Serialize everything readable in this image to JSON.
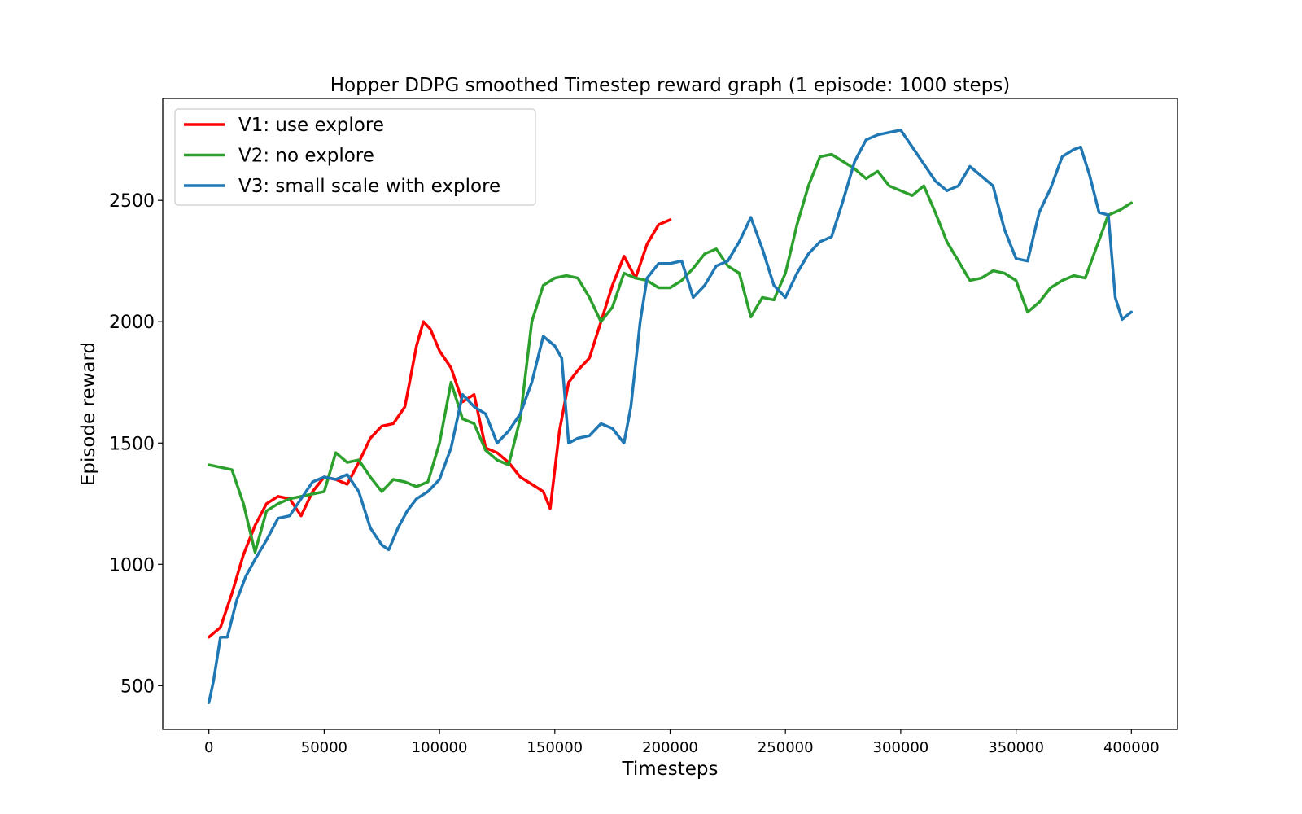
{
  "chart_data": {
    "type": "line",
    "title": "Hopper DDPG smoothed Timestep reward graph (1 episode: 1000 steps)",
    "xlabel": "Timesteps",
    "ylabel": "Episode reward",
    "xlim": [
      -20000,
      420000
    ],
    "ylim": [
      320,
      2920
    ],
    "xticks": [
      0,
      50000,
      100000,
      150000,
      200000,
      250000,
      300000,
      350000,
      400000
    ],
    "xtick_labels": [
      "0",
      "50000",
      "100000",
      "150000",
      "200000",
      "250000",
      "300000",
      "350000",
      "400000"
    ],
    "yticks": [
      500,
      1000,
      1500,
      2000,
      2500
    ],
    "ytick_labels": [
      "500",
      "1000",
      "1500",
      "2000",
      "2500"
    ],
    "grid": false,
    "legend_position": "top-left",
    "series": [
      {
        "name": "V1: use explore",
        "color": "#ff0000",
        "x": [
          0,
          5000,
          10000,
          15000,
          20000,
          25000,
          30000,
          35000,
          40000,
          45000,
          50000,
          55000,
          60000,
          65000,
          70000,
          75000,
          80000,
          85000,
          90000,
          93000,
          96000,
          100000,
          105000,
          110000,
          115000,
          120000,
          125000,
          130000,
          135000,
          140000,
          145000,
          148000,
          152000,
          156000,
          160000,
          165000,
          170000,
          175000,
          180000,
          185000,
          190000,
          195000,
          200000
        ],
        "y": [
          700,
          740,
          880,
          1040,
          1160,
          1250,
          1280,
          1270,
          1200,
          1300,
          1360,
          1350,
          1330,
          1420,
          1520,
          1570,
          1580,
          1650,
          1900,
          2000,
          1970,
          1880,
          1810,
          1670,
          1700,
          1480,
          1460,
          1420,
          1360,
          1330,
          1300,
          1230,
          1550,
          1750,
          1800,
          1850,
          2000,
          2150,
          2270,
          2180,
          2320,
          2400,
          2420
        ]
      },
      {
        "name": "V2: no explore",
        "color": "#2ca02c",
        "x": [
          0,
          5000,
          10000,
          15000,
          20000,
          25000,
          30000,
          35000,
          40000,
          45000,
          50000,
          55000,
          60000,
          65000,
          70000,
          75000,
          80000,
          85000,
          90000,
          95000,
          100000,
          105000,
          110000,
          115000,
          120000,
          125000,
          130000,
          135000,
          140000,
          145000,
          150000,
          155000,
          160000,
          165000,
          170000,
          175000,
          180000,
          185000,
          190000,
          195000,
          200000,
          205000,
          210000,
          215000,
          220000,
          225000,
          230000,
          235000,
          240000,
          245000,
          250000,
          255000,
          260000,
          265000,
          270000,
          275000,
          280000,
          285000,
          290000,
          295000,
          300000,
          305000,
          310000,
          315000,
          320000,
          325000,
          330000,
          335000,
          340000,
          345000,
          350000,
          355000,
          360000,
          365000,
          370000,
          375000,
          380000,
          385000,
          390000,
          395000,
          400000
        ],
        "y": [
          1410,
          1400,
          1390,
          1250,
          1050,
          1220,
          1250,
          1270,
          1280,
          1290,
          1300,
          1460,
          1420,
          1430,
          1360,
          1300,
          1350,
          1340,
          1320,
          1340,
          1500,
          1750,
          1600,
          1580,
          1470,
          1430,
          1410,
          1600,
          2000,
          2150,
          2180,
          2190,
          2180,
          2100,
          2000,
          2060,
          2200,
          2180,
          2170,
          2140,
          2140,
          2170,
          2220,
          2280,
          2300,
          2230,
          2200,
          2020,
          2100,
          2090,
          2200,
          2400,
          2560,
          2680,
          2690,
          2660,
          2630,
          2590,
          2620,
          2560,
          2540,
          2520,
          2560,
          2450,
          2330,
          2250,
          2170,
          2180,
          2210,
          2200,
          2170,
          2040,
          2080,
          2140,
          2170,
          2190,
          2180,
          2310,
          2440,
          2460,
          2490
        ]
      },
      {
        "name": "V3: small scale with explore",
        "color": "#1f77b4",
        "x": [
          0,
          2000,
          5000,
          8000,
          12000,
          16000,
          20000,
          25000,
          30000,
          35000,
          40000,
          45000,
          50000,
          55000,
          60000,
          65000,
          70000,
          75000,
          78000,
          82000,
          86000,
          90000,
          95000,
          100000,
          105000,
          110000,
          115000,
          120000,
          125000,
          130000,
          135000,
          140000,
          145000,
          150000,
          153000,
          156000,
          160000,
          165000,
          170000,
          175000,
          180000,
          183000,
          187000,
          190000,
          195000,
          200000,
          205000,
          210000,
          215000,
          220000,
          225000,
          230000,
          235000,
          240000,
          245000,
          250000,
          255000,
          260000,
          265000,
          270000,
          275000,
          280000,
          285000,
          290000,
          295000,
          300000,
          305000,
          310000,
          315000,
          320000,
          325000,
          330000,
          335000,
          340000,
          345000,
          350000,
          355000,
          360000,
          365000,
          370000,
          375000,
          378000,
          382000,
          386000,
          390000,
          393000,
          396000,
          400000
        ],
        "y": [
          430,
          520,
          700,
          700,
          850,
          950,
          1020,
          1100,
          1190,
          1200,
          1270,
          1340,
          1360,
          1350,
          1370,
          1300,
          1150,
          1080,
          1060,
          1150,
          1220,
          1270,
          1300,
          1350,
          1480,
          1700,
          1650,
          1620,
          1500,
          1550,
          1620,
          1750,
          1940,
          1900,
          1850,
          1500,
          1520,
          1530,
          1580,
          1560,
          1500,
          1650,
          2000,
          2180,
          2240,
          2240,
          2250,
          2100,
          2150,
          2230,
          2250,
          2330,
          2430,
          2300,
          2150,
          2100,
          2200,
          2280,
          2330,
          2350,
          2500,
          2660,
          2750,
          2770,
          2780,
          2790,
          2720,
          2650,
          2580,
          2540,
          2560,
          2640,
          2600,
          2560,
          2380,
          2260,
          2250,
          2450,
          2550,
          2680,
          2710,
          2720,
          2600,
          2450,
          2440,
          2100,
          2010,
          2040
        ]
      }
    ]
  }
}
